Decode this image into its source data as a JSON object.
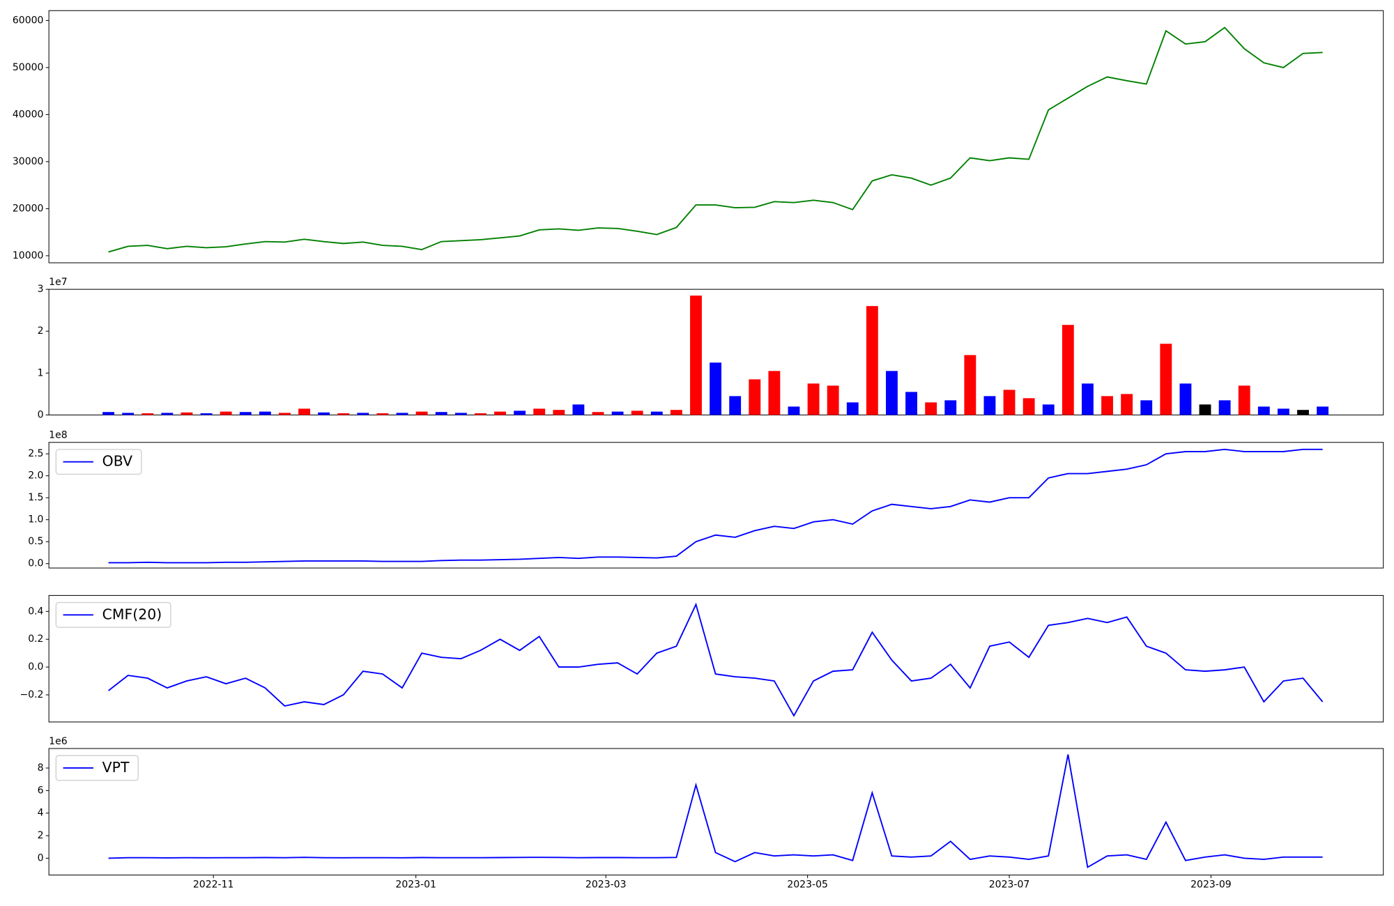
{
  "chart_data": [
    {
      "type": "line",
      "color": "#008000",
      "values": [
        10800,
        12000,
        12200,
        11500,
        12000,
        11700,
        11900,
        12500,
        13000,
        12900,
        13500,
        13000,
        12600,
        12900,
        12200,
        12000,
        11300,
        13000,
        13200,
        13400,
        13800,
        14200,
        15500,
        15700,
        15400,
        15900,
        15800,
        15200,
        14500,
        16000,
        20800,
        20800,
        20200,
        20300,
        21500,
        21300,
        21800,
        21300,
        19800,
        25900,
        27200,
        26500,
        25000,
        26500,
        30800,
        30200,
        30800,
        30500,
        41000,
        43500,
        46000,
        48000,
        47200,
        46500,
        57800,
        55000,
        55500,
        58500,
        54000,
        51000,
        50000,
        53000,
        53200
      ],
      "xlim": [
        -3.04,
        65.1
      ],
      "ylim": [
        8500,
        62100
      ],
      "yticks": [
        10000,
        20000,
        30000,
        40000,
        50000,
        60000
      ]
    },
    {
      "type": "bar",
      "offset_label": "1e7",
      "values": [
        0.07,
        0.05,
        0.04,
        0.05,
        0.06,
        0.04,
        0.08,
        0.07,
        0.08,
        0.05,
        0.15,
        0.06,
        0.04,
        0.05,
        0.04,
        0.05,
        0.08,
        0.07,
        0.05,
        0.04,
        0.08,
        0.1,
        0.15,
        0.12,
        0.25,
        0.07,
        0.08,
        0.1,
        0.08,
        0.12,
        2.85,
        1.25,
        0.45,
        0.85,
        1.05,
        0.2,
        0.75,
        0.7,
        0.3,
        2.6,
        1.05,
        0.55,
        0.3,
        0.35,
        1.43,
        0.45,
        0.6,
        0.4,
        0.25,
        2.15,
        0.75,
        0.45,
        0.5,
        0.35,
        1.7,
        0.75,
        0.25,
        0.35,
        0.7,
        0.2,
        0.15,
        0.12,
        0.2
      ],
      "colors": [
        "blue",
        "blue",
        "red",
        "blue",
        "red",
        "blue",
        "red",
        "blue",
        "blue",
        "red",
        "red",
        "blue",
        "red",
        "blue",
        "red",
        "blue",
        "red",
        "blue",
        "blue",
        "red",
        "red",
        "blue",
        "red",
        "red",
        "blue",
        "red",
        "blue",
        "red",
        "blue",
        "red",
        "red",
        "blue",
        "blue",
        "red",
        "red",
        "blue",
        "red",
        "red",
        "blue",
        "red",
        "blue",
        "blue",
        "red",
        "blue",
        "red",
        "blue",
        "red",
        "red",
        "blue",
        "red",
        "blue",
        "red",
        "red",
        "blue",
        "red",
        "blue",
        "black",
        "blue",
        "red",
        "blue",
        "blue",
        "black",
        "blue"
      ],
      "xlim": [
        -3.04,
        65.1
      ],
      "ylim": [
        0,
        3
      ],
      "yticks": [
        0,
        1,
        2,
        3
      ]
    },
    {
      "type": "line",
      "offset_label": "1e8",
      "legend": "upper left",
      "series": [
        {
          "name": "OBV",
          "color": "#0000ff",
          "values": [
            0.02,
            0.02,
            0.03,
            0.02,
            0.02,
            0.02,
            0.03,
            0.03,
            0.04,
            0.05,
            0.06,
            0.06,
            0.06,
            0.06,
            0.05,
            0.05,
            0.05,
            0.07,
            0.08,
            0.08,
            0.09,
            0.1,
            0.12,
            0.14,
            0.12,
            0.15,
            0.15,
            0.14,
            0.13,
            0.17,
            0.5,
            0.65,
            0.6,
            0.75,
            0.85,
            0.8,
            0.95,
            1.0,
            0.9,
            1.2,
            1.35,
            1.3,
            1.25,
            1.3,
            1.45,
            1.4,
            1.5,
            1.5,
            1.95,
            2.05,
            2.05,
            2.1,
            2.15,
            2.25,
            2.5,
            2.55,
            2.55,
            2.6,
            2.55,
            2.55,
            2.55,
            2.6,
            2.6
          ]
        }
      ],
      "xlim": [
        -3.04,
        65.1
      ],
      "ylim": [
        -0.1,
        2.76
      ],
      "yticks": [
        {
          "value": 0,
          "label": "0.0"
        },
        0.5,
        {
          "value": 1,
          "label": "1.0"
        },
        1.5,
        {
          "value": 2,
          "label": "2.0"
        },
        2.5
      ]
    },
    {
      "type": "line",
      "legend": "upper left",
      "series": [
        {
          "name": "CMF(20)",
          "color": "#0000ff",
          "values": [
            -0.17,
            -0.06,
            -0.08,
            -0.15,
            -0.1,
            -0.07,
            -0.12,
            -0.08,
            -0.15,
            -0.28,
            -0.25,
            -0.27,
            -0.2,
            -0.03,
            -0.05,
            -0.15,
            0.1,
            0.07,
            0.06,
            0.12,
            0.2,
            0.12,
            0.22,
            0.0,
            0.0,
            0.02,
            0.03,
            -0.05,
            0.1,
            0.15,
            0.45,
            -0.05,
            -0.07,
            -0.08,
            -0.1,
            -0.35,
            -0.1,
            -0.03,
            -0.02,
            0.25,
            0.05,
            -0.1,
            -0.08,
            0.02,
            -0.15,
            0.15,
            0.18,
            0.07,
            0.3,
            0.32,
            0.35,
            0.32,
            0.36,
            0.15,
            0.1,
            -0.02,
            -0.03,
            -0.02,
            0.0,
            -0.25,
            -0.1,
            -0.08,
            -0.25
          ]
        }
      ],
      "xlim": [
        -3.04,
        65.1
      ],
      "ylim": [
        -0.395,
        0.515
      ],
      "yticks": [
        {
          "value": -0.2,
          "label": "−0.2"
        },
        {
          "value": 0,
          "label": "0.0"
        },
        0.2,
        0.4
      ]
    },
    {
      "type": "line",
      "offset_label": "1e6",
      "legend": "upper left",
      "series": [
        {
          "name": "VPT",
          "color": "#0000ff",
          "values": [
            0.0,
            0.05,
            0.05,
            0.03,
            0.05,
            0.04,
            0.05,
            0.05,
            0.06,
            0.05,
            0.08,
            0.05,
            0.04,
            0.05,
            0.05,
            0.04,
            0.06,
            0.05,
            0.05,
            0.05,
            0.06,
            0.07,
            0.08,
            0.07,
            0.05,
            0.06,
            0.06,
            0.05,
            0.05,
            0.07,
            6.5,
            0.5,
            -0.3,
            0.5,
            0.2,
            0.3,
            0.2,
            0.3,
            -0.2,
            5.8,
            0.2,
            0.1,
            0.2,
            1.5,
            -0.1,
            0.2,
            0.1,
            -0.1,
            0.2,
            9.2,
            -0.8,
            0.2,
            0.3,
            -0.1,
            3.2,
            -0.2,
            0.1,
            0.3,
            0.0,
            -0.1,
            0.1,
            0.1,
            0.1
          ]
        }
      ],
      "xlim": [
        -3.04,
        65.1
      ],
      "ylim": [
        -1.49,
        9.73
      ],
      "yticks": [
        0,
        2,
        4,
        6,
        8
      ],
      "xticks": [
        {
          "value": 5.36,
          "label": "2022-11"
        },
        {
          "value": 15.7,
          "label": "2023-01"
        },
        {
          "value": 25.4,
          "label": "2023-03"
        },
        {
          "value": 35.7,
          "label": "2023-05"
        },
        {
          "value": 46.0,
          "label": "2023-07"
        },
        {
          "value": 56.3,
          "label": "2023-09"
        }
      ]
    }
  ]
}
